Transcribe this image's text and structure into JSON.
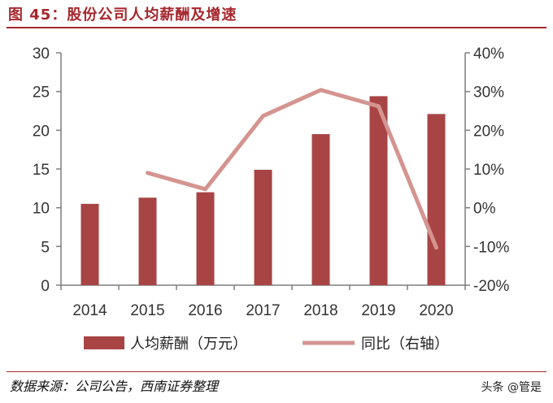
{
  "title": "图 45：股份公司人均薪酬及增速",
  "source": "数据来源：公司公告，西南证券整理",
  "watermark": "头条 @管是",
  "chart_data": {
    "type": "bar+line",
    "title": "图 45：股份公司人均薪酬及增速",
    "categories": [
      "2014",
      "2015",
      "2016",
      "2017",
      "2018",
      "2019",
      "2020"
    ],
    "series": [
      {
        "name": "人均薪酬（万元）",
        "type": "bar",
        "axis": "left",
        "color": "#a84444",
        "values": [
          10.5,
          11.3,
          12.0,
          14.9,
          19.5,
          24.4,
          22.1
        ]
      },
      {
        "name": "同比（右轴）",
        "type": "line",
        "axis": "right",
        "color": "#d49490",
        "values": [
          null,
          9.0,
          4.8,
          23.7,
          30.4,
          26.2,
          -10.3
        ]
      }
    ],
    "yleft": {
      "lim": [
        0,
        30
      ],
      "ticks": [
        "0",
        "5",
        "10",
        "15",
        "20",
        "25",
        "30"
      ]
    },
    "yright": {
      "lim": [
        -20,
        40
      ],
      "ticks": [
        "-20%",
        "-10%",
        "0%",
        "10%",
        "20%",
        "30%",
        "40%"
      ]
    },
    "grid": false,
    "legend": "bottom"
  }
}
